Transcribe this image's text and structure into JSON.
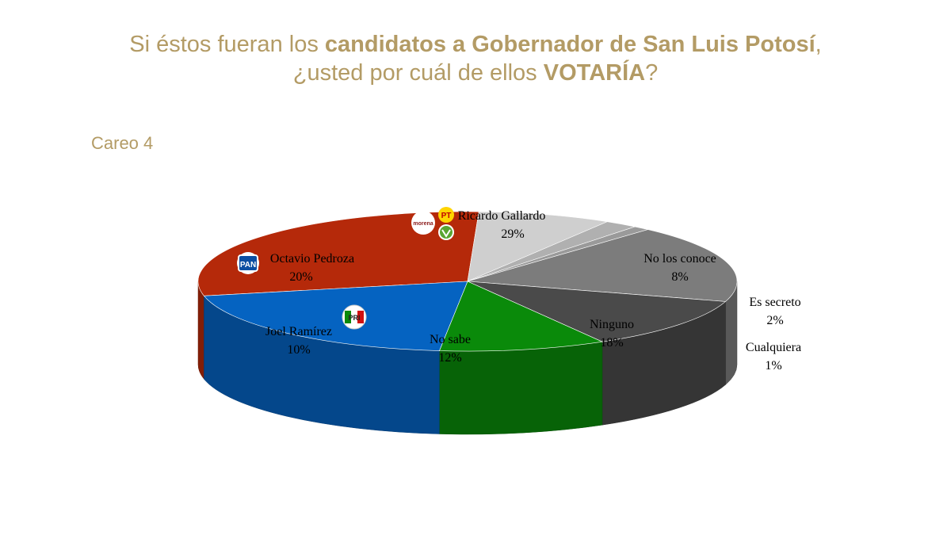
{
  "title": {
    "part1": "Si éstos fueran los ",
    "bold1": "candidatos a Gobernador de San Luis Potosí",
    "part2": ", ¿usted por cuál de ellos ",
    "bold2": "VOTARÍA",
    "part3": "?"
  },
  "subtitle": "Careo 4",
  "colors": {
    "title": "#b39b65",
    "ricardo": "#b5290a",
    "octavio": "#0563c1",
    "joel": "#0a8a0a",
    "no_sabe": "#4a4a4a",
    "ninguno": "#7c7c7c",
    "no_los_conoce": "#cfcfcf",
    "es_secreto": "#b0b0b0",
    "cualquiera": "#9a9a9a"
  },
  "logos": {
    "pan": "PAN",
    "pri": "PRI",
    "morena": "morena",
    "pt": "PT",
    "pvem": "PVEM"
  },
  "chart_data": {
    "type": "pie",
    "title": "",
    "series": [
      {
        "name": "Ricardo Gallardo",
        "value": 29,
        "label": "29%"
      },
      {
        "name": "No los conoce",
        "value": 8,
        "label": "8%"
      },
      {
        "name": "Es secreto",
        "value": 2,
        "label": "2%"
      },
      {
        "name": "Cualquiera",
        "value": 1,
        "label": "1%"
      },
      {
        "name": "Ninguno",
        "value": 18,
        "label": "18%"
      },
      {
        "name": "No sabe",
        "value": 12,
        "label": "12%"
      },
      {
        "name": "Joel Ramírez",
        "value": 10,
        "label": "10%"
      },
      {
        "name": "Octavio Pedroza",
        "value": 20,
        "label": "20%"
      }
    ]
  }
}
